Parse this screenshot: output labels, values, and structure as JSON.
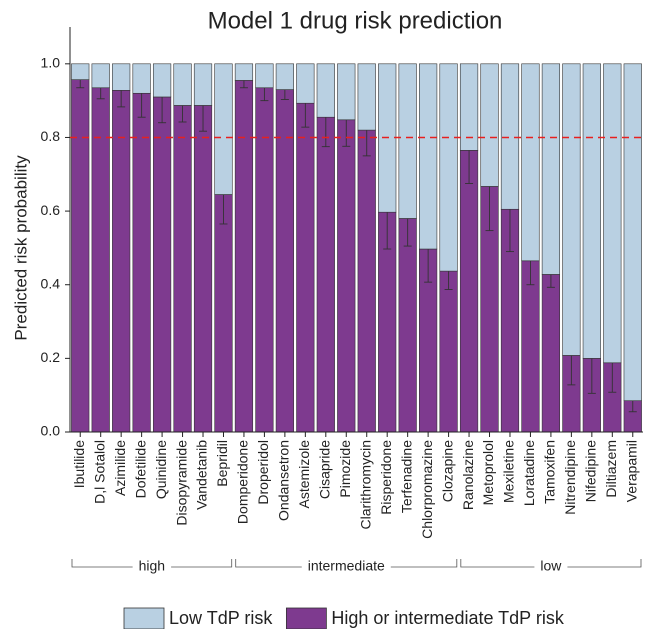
{
  "chart_data": {
    "type": "bar",
    "stacked": true,
    "title": "Model 1 drug risk prediction",
    "y_label": "Predicted risk probability",
    "categories": [
      "Ibutilide",
      "D,l Sotalol",
      "Azimilide",
      "Dofetilide",
      "Quinidine",
      "Disopyramide",
      "Vandetanib",
      "Bepridil",
      "Domperidone",
      "Droperidol",
      "Ondansetron",
      "Astemizole",
      "Cisapride",
      "Pimozide",
      "Clarithromycin",
      "Risperidone",
      "Terfenadine",
      "Chlorpromazine",
      "Clozapine",
      "Ranolazine",
      "Metoprolol",
      "Mexiletine",
      "Loratadine",
      "Tamoxifen",
      "Nitrendipine",
      "Nifedipine",
      "Diltiazem",
      "Verapamil"
    ],
    "series": [
      {
        "name": "High or intermediate TdP risk",
        "color": "#7e3a8f",
        "values": [
          0.957,
          0.935,
          0.928,
          0.92,
          0.91,
          0.887,
          0.887,
          0.645,
          0.955,
          0.935,
          0.93,
          0.893,
          0.855,
          0.848,
          0.82,
          0.597,
          0.58,
          0.497,
          0.437,
          0.765,
          0.667,
          0.605,
          0.465,
          0.428,
          0.208,
          0.2,
          0.188,
          0.085
        ],
        "errors": [
          0.022,
          0.03,
          0.045,
          0.065,
          0.07,
          0.045,
          0.07,
          0.08,
          0.02,
          0.035,
          0.027,
          0.065,
          0.08,
          0.072,
          0.07,
          0.1,
          0.075,
          0.09,
          0.05,
          0.09,
          0.12,
          0.115,
          0.065,
          0.035,
          0.08,
          0.095,
          0.08,
          0.03
        ]
      },
      {
        "name": "Low TdP risk",
        "color": "#b9d0e2",
        "values": [
          0.043,
          0.065,
          0.072,
          0.08,
          0.09,
          0.113,
          0.113,
          0.355,
          0.045,
          0.065,
          0.07,
          0.107,
          0.145,
          0.152,
          0.18,
          0.403,
          0.42,
          0.503,
          0.563,
          0.235,
          0.333,
          0.395,
          0.535,
          0.572,
          0.792,
          0.8,
          0.812,
          0.915
        ]
      }
    ],
    "groups": [
      {
        "label": "high",
        "size": 8
      },
      {
        "label": "intermediate",
        "size": 11
      },
      {
        "label": "low",
        "size": 9
      }
    ],
    "threshold": {
      "value": 0.8,
      "color": "#e8201f"
    },
    "ylim": [
      0,
      1.1
    ],
    "yticks": [
      {
        "value": 0,
        "label": "0.0"
      },
      0.2,
      0.4,
      0.6,
      0.8,
      {
        "value": 1,
        "label": "1.0"
      }
    ]
  }
}
